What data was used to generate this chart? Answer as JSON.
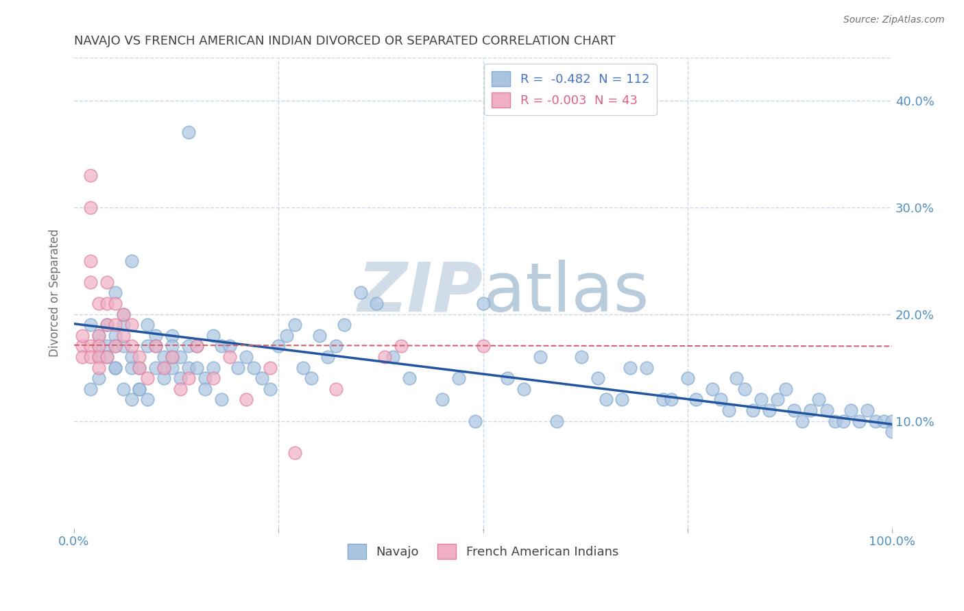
{
  "title": "NAVAJO VS FRENCH AMERICAN INDIAN DIVORCED OR SEPARATED CORRELATION CHART",
  "source": "Source: ZipAtlas.com",
  "ylabel": "Divorced or Separated",
  "xlim": [
    0,
    1.0
  ],
  "ylim": [
    0,
    0.44
  ],
  "legend_r1": "R =  -0.482  N = 112",
  "legend_r2": "R = -0.003  N = 43",
  "navajo_color": "#aac4e0",
  "french_color": "#f0b0c4",
  "navajo_edge": "#80a8d0",
  "french_edge": "#e080a0",
  "blue_line_color": "#2255a0",
  "pink_line_color": "#d06070",
  "background_color": "#ffffff",
  "grid_color": "#c8d8e8",
  "title_color": "#404040",
  "axis_label_color": "#5090c0",
  "ylabel_color": "#707070",
  "watermark_zip_color": "#d0dde8",
  "watermark_atlas_color": "#b8ccdc",
  "navajo_x": [
    0.02,
    0.03,
    0.03,
    0.03,
    0.04,
    0.04,
    0.05,
    0.05,
    0.05,
    0.05,
    0.06,
    0.06,
    0.06,
    0.07,
    0.07,
    0.07,
    0.08,
    0.08,
    0.09,
    0.09,
    0.1,
    0.1,
    0.11,
    0.11,
    0.12,
    0.12,
    0.12,
    0.13,
    0.13,
    0.14,
    0.14,
    0.15,
    0.15,
    0.16,
    0.16,
    0.17,
    0.17,
    0.18,
    0.18,
    0.19,
    0.2,
    0.21,
    0.22,
    0.23,
    0.24,
    0.25,
    0.26,
    0.27,
    0.28,
    0.29,
    0.3,
    0.31,
    0.32,
    0.33,
    0.35,
    0.37,
    0.39,
    0.41,
    0.45,
    0.47,
    0.49,
    0.5,
    0.53,
    0.55,
    0.57,
    0.59,
    0.62,
    0.64,
    0.65,
    0.67,
    0.68,
    0.7,
    0.72,
    0.73,
    0.75,
    0.76,
    0.78,
    0.79,
    0.8,
    0.81,
    0.82,
    0.83,
    0.84,
    0.85,
    0.86,
    0.87,
    0.88,
    0.89,
    0.9,
    0.91,
    0.92,
    0.93,
    0.94,
    0.95,
    0.96,
    0.97,
    0.98,
    0.99,
    1.0,
    1.0,
    0.02,
    0.03,
    0.04,
    0.05,
    0.06,
    0.07,
    0.08,
    0.09,
    0.1,
    0.11,
    0.12,
    0.14
  ],
  "navajo_y": [
    0.19,
    0.18,
    0.17,
    0.16,
    0.19,
    0.17,
    0.18,
    0.17,
    0.15,
    0.22,
    0.19,
    0.17,
    0.2,
    0.16,
    0.15,
    0.25,
    0.15,
    0.13,
    0.19,
    0.17,
    0.18,
    0.17,
    0.16,
    0.15,
    0.18,
    0.17,
    0.15,
    0.16,
    0.14,
    0.17,
    0.15,
    0.17,
    0.15,
    0.14,
    0.13,
    0.15,
    0.18,
    0.17,
    0.12,
    0.17,
    0.15,
    0.16,
    0.15,
    0.14,
    0.13,
    0.17,
    0.18,
    0.19,
    0.15,
    0.14,
    0.18,
    0.16,
    0.17,
    0.19,
    0.22,
    0.21,
    0.16,
    0.14,
    0.12,
    0.14,
    0.1,
    0.21,
    0.14,
    0.13,
    0.16,
    0.1,
    0.16,
    0.14,
    0.12,
    0.12,
    0.15,
    0.15,
    0.12,
    0.12,
    0.14,
    0.12,
    0.13,
    0.12,
    0.11,
    0.14,
    0.13,
    0.11,
    0.12,
    0.11,
    0.12,
    0.13,
    0.11,
    0.1,
    0.11,
    0.12,
    0.11,
    0.1,
    0.1,
    0.11,
    0.1,
    0.11,
    0.1,
    0.1,
    0.1,
    0.09,
    0.13,
    0.14,
    0.16,
    0.15,
    0.13,
    0.12,
    0.13,
    0.12,
    0.15,
    0.14,
    0.16,
    0.37
  ],
  "french_x": [
    0.01,
    0.01,
    0.01,
    0.02,
    0.02,
    0.02,
    0.02,
    0.02,
    0.02,
    0.03,
    0.03,
    0.03,
    0.03,
    0.03,
    0.04,
    0.04,
    0.04,
    0.04,
    0.05,
    0.05,
    0.05,
    0.06,
    0.06,
    0.07,
    0.07,
    0.08,
    0.08,
    0.09,
    0.1,
    0.11,
    0.12,
    0.13,
    0.14,
    0.15,
    0.17,
    0.19,
    0.21,
    0.24,
    0.27,
    0.32,
    0.38,
    0.4,
    0.5
  ],
  "french_y": [
    0.17,
    0.16,
    0.18,
    0.33,
    0.3,
    0.25,
    0.23,
    0.17,
    0.16,
    0.21,
    0.18,
    0.17,
    0.16,
    0.15,
    0.23,
    0.21,
    0.19,
    0.16,
    0.21,
    0.19,
    0.17,
    0.2,
    0.18,
    0.19,
    0.17,
    0.16,
    0.15,
    0.14,
    0.17,
    0.15,
    0.16,
    0.13,
    0.14,
    0.17,
    0.14,
    0.16,
    0.12,
    0.15,
    0.07,
    0.13,
    0.16,
    0.17,
    0.17
  ],
  "blue_line_x": [
    0.0,
    1.0
  ],
  "blue_line_y": [
    0.191,
    0.097
  ],
  "pink_line_x": [
    0.0,
    1.0
  ],
  "pink_line_y": [
    0.171,
    0.17
  ]
}
